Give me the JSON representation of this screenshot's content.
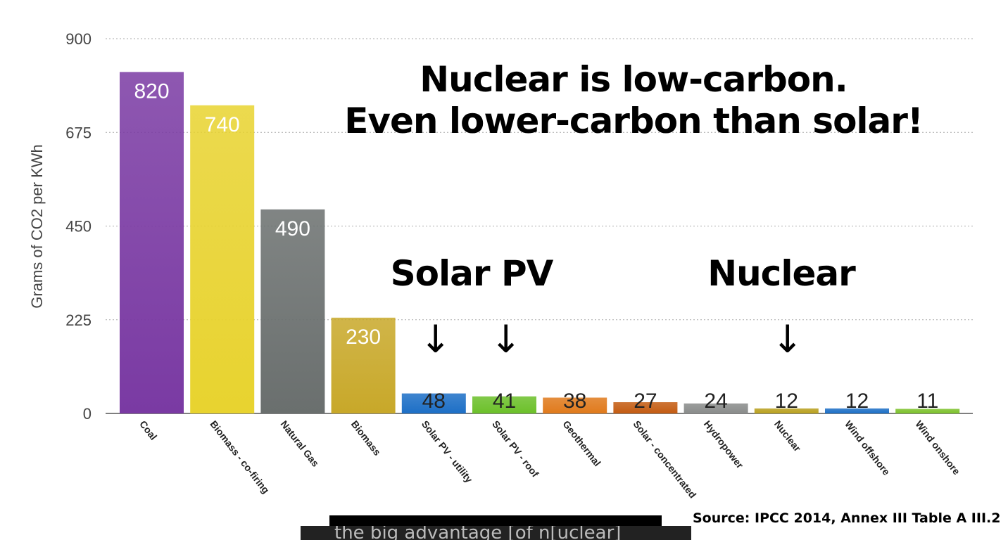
{
  "chart_data": {
    "type": "bar",
    "title": "Nuclear is low-carbon.",
    "subtitle": "Even lower-carbon than solar!",
    "ylabel": "Grams of CO2 per KWh",
    "xlabel": "",
    "ylim": [
      0,
      900
    ],
    "yticks": [
      0,
      225,
      450,
      675,
      900
    ],
    "grid": true,
    "categories": [
      "Coal",
      "Biomass - co-firing",
      "Natural Gas",
      "Biomass",
      "Solar PV - utility",
      "Solar PV - roof",
      "Geothermal",
      "Solar - concentrated",
      "Hydropower",
      "Nuclear",
      "Wind offshore",
      "Wind onshore"
    ],
    "values": [
      820,
      740,
      490,
      230,
      48,
      41,
      38,
      27,
      24,
      12,
      12,
      11
    ],
    "colors": [
      "#7a3aa3",
      "#e8d32f",
      "#6a6f6e",
      "#c8a829",
      "#1d6fc6",
      "#6cc02a",
      "#e07a1c",
      "#c45c12",
      "#8a8c8b",
      "#b9a01f",
      "#1d6fc6",
      "#7cc12c"
    ],
    "annotations": [
      {
        "text": "Solar PV",
        "points_to": [
          "Solar PV - utility",
          "Solar PV - roof"
        ]
      },
      {
        "text": "Nuclear",
        "points_to": [
          "Nuclear"
        ]
      }
    ],
    "source": "Source: IPCC 2014, Annex III Table A III.2"
  },
  "caption": "the big advantage [of n[uclear]",
  "arrow_glyph": "↓"
}
